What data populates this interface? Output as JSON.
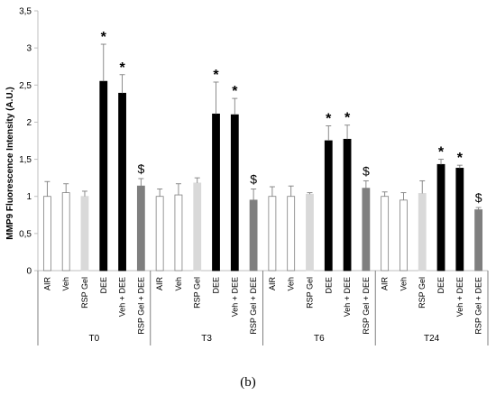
{
  "chart_data": {
    "type": "bar",
    "ylabel": "MMP9 Fluorescence Intensity (A.U.)",
    "ylim": [
      0,
      3.5
    ],
    "y_ticks": [
      "0",
      "0,5",
      "1",
      "1,5",
      "2",
      "2,5",
      "3",
      "3,5"
    ],
    "grid": false,
    "legend": "none",
    "categories": [
      "AIR",
      "Veh",
      "RSP Gel",
      "DEE",
      "Veh + DEE",
      "RSP Gel + DEE"
    ],
    "category_colors": [
      "#ffffff",
      "#ffffff",
      "#d9d9d9",
      "#000000",
      "#000000",
      "#7f7f7f"
    ],
    "groups": [
      {
        "label": "T0",
        "values": [
          1.0,
          1.05,
          1.0,
          2.55,
          2.39,
          1.14
        ],
        "errors": [
          0.2,
          0.12,
          0.07,
          0.5,
          0.25,
          0.1
        ],
        "marks": [
          "",
          "",
          "",
          "*",
          "*",
          "$"
        ]
      },
      {
        "label": "T3",
        "values": [
          1.0,
          1.02,
          1.18,
          2.11,
          2.1,
          0.95
        ],
        "errors": [
          0.1,
          0.15,
          0.07,
          0.43,
          0.22,
          0.15
        ],
        "marks": [
          "",
          "",
          "",
          "*",
          "*",
          "$"
        ]
      },
      {
        "label": "T6",
        "values": [
          1.0,
          1.0,
          1.03,
          1.75,
          1.77,
          1.11
        ],
        "errors": [
          0.13,
          0.14,
          0.02,
          0.2,
          0.19,
          0.1
        ],
        "marks": [
          "",
          "",
          "",
          "*",
          "*",
          "$"
        ]
      },
      {
        "label": "T24",
        "values": [
          1.0,
          0.95,
          1.04,
          1.43,
          1.38,
          0.82
        ],
        "errors": [
          0.06,
          0.1,
          0.17,
          0.07,
          0.04,
          0.03
        ],
        "marks": [
          "",
          "",
          "",
          "*",
          "*",
          "$"
        ]
      }
    ]
  },
  "caption": "(b)"
}
